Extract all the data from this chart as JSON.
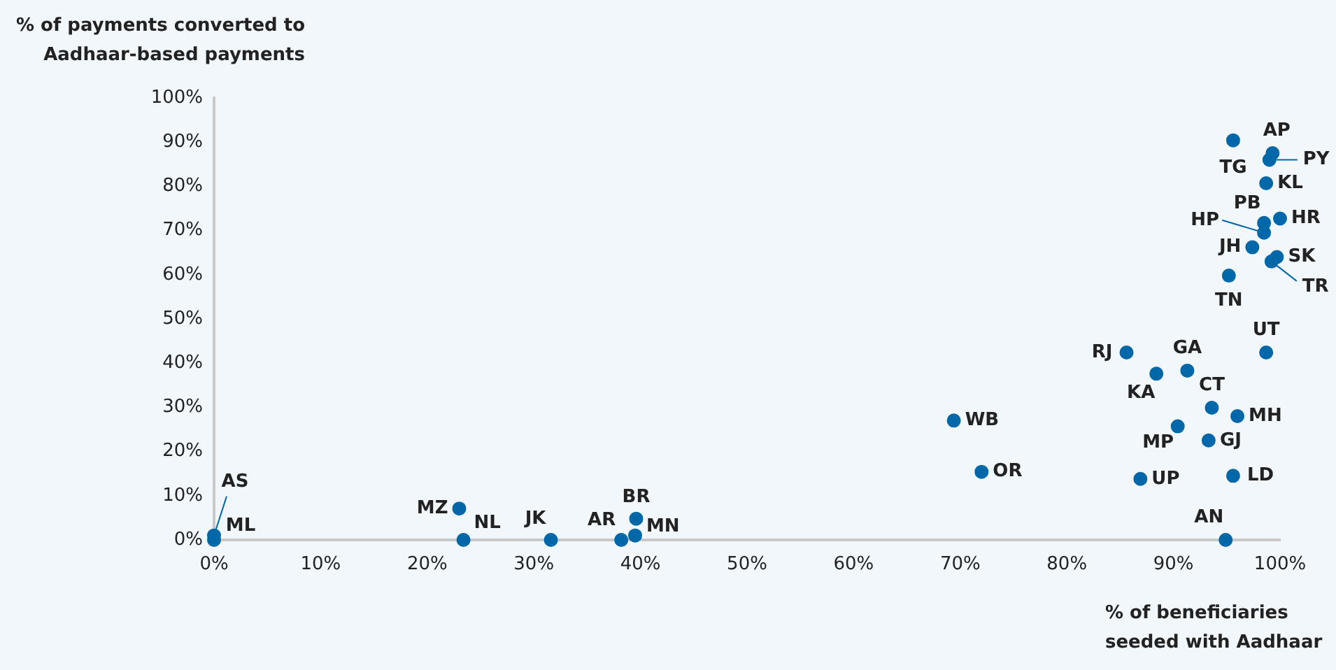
{
  "chart_data": {
    "type": "scatter",
    "xlabel": "% of beneficiaries seeded with Aadhaar",
    "ylabel": "% of payments converted to Aadhaar-based payments",
    "xlim": [
      0,
      100
    ],
    "ylim": [
      0,
      100
    ],
    "xticks": [
      {
        "value": 0,
        "label": "0%"
      },
      {
        "value": 10,
        "label": "10%"
      },
      {
        "value": 20,
        "label": "20%"
      },
      {
        "value": 30,
        "label": "30%"
      },
      {
        "value": 40,
        "label": "40%"
      },
      {
        "value": 50,
        "label": "50%"
      },
      {
        "value": 60,
        "label": "60%"
      },
      {
        "value": 70,
        "label": "70%"
      },
      {
        "value": 80,
        "label": "80%"
      },
      {
        "value": 90,
        "label": "90%"
      },
      {
        "value": 100,
        "label": "100%"
      }
    ],
    "yticks": [
      {
        "value": 0,
        "label": "0%"
      },
      {
        "value": 10,
        "label": "10%"
      },
      {
        "value": 20,
        "label": "20%"
      },
      {
        "value": 30,
        "label": "30%"
      },
      {
        "value": 40,
        "label": "40%"
      },
      {
        "value": 50,
        "label": "50%"
      },
      {
        "value": 60,
        "label": "60%"
      },
      {
        "value": 70,
        "label": "70%"
      },
      {
        "value": 80,
        "label": "80%"
      },
      {
        "value": 90,
        "label": "90%"
      },
      {
        "value": 100,
        "label": "100%"
      }
    ],
    "grid": false,
    "legend": false,
    "marker": "circle",
    "color": "#0068a8",
    "x": [
      95.6,
      99.3,
      99,
      98.7,
      100,
      98.5,
      98.5,
      97.4,
      99.7,
      99.2,
      95.2,
      98.7,
      85.6,
      91.3,
      88.4,
      93.6,
      96,
      90.4,
      93.3,
      86.9,
      95.6,
      94.9,
      69.4,
      72,
      23,
      23.4,
      31.6,
      38.2,
      39.6,
      39.5,
      0,
      0
    ],
    "values": [
      90.4,
      87.5,
      86,
      80.7,
      72.7,
      71.7,
      69.5,
      66.2,
      64,
      63,
      59.8,
      42.4,
      42.4,
      38.3,
      37.6,
      29.9,
      28,
      25.7,
      22.5,
      13.8,
      14.5,
      0,
      27,
      15.4,
      7.1,
      0,
      0,
      0,
      4.8,
      1,
      1,
      0
    ],
    "annotations": [
      {
        "text": "TG",
        "x": 95.6,
        "y": 90.4
      },
      {
        "text": "AP",
        "x": 99.3,
        "y": 87.5
      },
      {
        "text": "PY",
        "x": 99,
        "y": 86
      },
      {
        "text": "KL",
        "x": 98.7,
        "y": 80.7
      },
      {
        "text": "HR",
        "x": 100,
        "y": 72.7
      },
      {
        "text": "PB",
        "x": 98.5,
        "y": 71.7
      },
      {
        "text": "HP",
        "x": 98.5,
        "y": 69.5
      },
      {
        "text": "JH",
        "x": 97.4,
        "y": 66.2
      },
      {
        "text": "SK",
        "x": 99.7,
        "y": 64
      },
      {
        "text": "TR",
        "x": 99.2,
        "y": 63
      },
      {
        "text": "TN",
        "x": 95.2,
        "y": 59.8
      },
      {
        "text": "UT",
        "x": 98.7,
        "y": 42.4
      },
      {
        "text": "RJ",
        "x": 85.6,
        "y": 42.4
      },
      {
        "text": "GA",
        "x": 91.3,
        "y": 38.3
      },
      {
        "text": "KA",
        "x": 88.4,
        "y": 37.6
      },
      {
        "text": "CT",
        "x": 93.6,
        "y": 29.9
      },
      {
        "text": "MH",
        "x": 96,
        "y": 28
      },
      {
        "text": "MP",
        "x": 90.4,
        "y": 25.7
      },
      {
        "text": "GJ",
        "x": 93.3,
        "y": 22.5
      },
      {
        "text": "UP",
        "x": 86.9,
        "y": 13.8
      },
      {
        "text": "LD",
        "x": 95.6,
        "y": 14.5
      },
      {
        "text": "AN",
        "x": 94.9,
        "y": 0
      },
      {
        "text": "WB",
        "x": 69.4,
        "y": 27
      },
      {
        "text": "OR",
        "x": 72,
        "y": 15.4
      },
      {
        "text": "MZ",
        "x": 23,
        "y": 7.1
      },
      {
        "text": "NL",
        "x": 23.4,
        "y": 0
      },
      {
        "text": "JK",
        "x": 31.6,
        "y": 0
      },
      {
        "text": "AR",
        "x": 38.2,
        "y": 0
      },
      {
        "text": "BR",
        "x": 39.6,
        "y": 4.8
      },
      {
        "text": "MN",
        "x": 39.5,
        "y": 1
      },
      {
        "text": "AS",
        "x": 0,
        "y": 1
      },
      {
        "text": "ML",
        "x": 0,
        "y": 0
      }
    ]
  }
}
